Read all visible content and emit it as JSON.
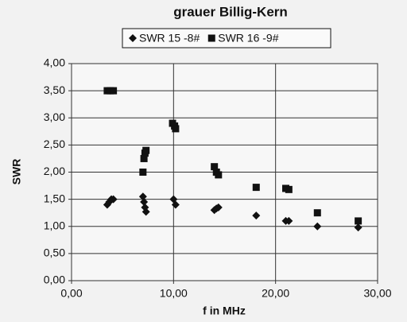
{
  "chart_data": {
    "type": "scatter",
    "title": "grauer Billig-Kern",
    "x_label": "f in MHz",
    "y_label": "SWR",
    "series": [
      {
        "name": "SWR 15 -8#",
        "marker": "diamond",
        "color": "#111111",
        "x": [
          3.5,
          3.7,
          3.9,
          4.1,
          7.0,
          7.1,
          7.2,
          7.3,
          10.0,
          10.2,
          14.0,
          14.2,
          14.4,
          18.1,
          21.0,
          21.3,
          24.1,
          28.1
        ],
        "values": [
          1.4,
          1.45,
          1.5,
          1.5,
          1.55,
          1.45,
          1.35,
          1.27,
          1.5,
          1.4,
          1.3,
          1.33,
          1.35,
          1.2,
          1.1,
          1.1,
          1.0,
          0.98
        ]
      },
      {
        "name": "SWR 16 -9#",
        "marker": "square",
        "color": "#111111",
        "x": [
          3.5,
          3.8,
          4.1,
          7.0,
          7.1,
          7.2,
          7.3,
          9.9,
          10.1,
          10.2,
          14.0,
          14.2,
          14.4,
          18.1,
          21.0,
          21.3,
          24.1,
          28.1
        ],
        "values": [
          3.5,
          3.5,
          3.5,
          2.0,
          2.25,
          2.35,
          2.4,
          2.9,
          2.85,
          2.8,
          2.1,
          2.0,
          1.95,
          1.72,
          1.7,
          1.68,
          1.25,
          1.1
        ]
      }
    ],
    "xlim": [
      0,
      30
    ],
    "xticks": [
      {
        "value": 0,
        "label": "0,00"
      },
      {
        "value": 10,
        "label": "10,00"
      },
      {
        "value": 20,
        "label": "20,00"
      },
      {
        "value": 30,
        "label": "30,00"
      }
    ],
    "ylim": [
      0,
      4
    ],
    "yticks": [
      {
        "value": 0,
        "label": "0,00"
      },
      {
        "value": 0.5,
        "label": "0,50"
      },
      {
        "value": 1,
        "label": "1,00"
      },
      {
        "value": 1.5,
        "label": "1,50"
      },
      {
        "value": 2,
        "label": "2,00"
      },
      {
        "value": 2.5,
        "label": "2,50"
      },
      {
        "value": 3,
        "label": "3,00"
      },
      {
        "value": 3.5,
        "label": "3,50"
      },
      {
        "value": 4,
        "label": "4,00"
      }
    ],
    "grid": true,
    "legend": "top"
  }
}
